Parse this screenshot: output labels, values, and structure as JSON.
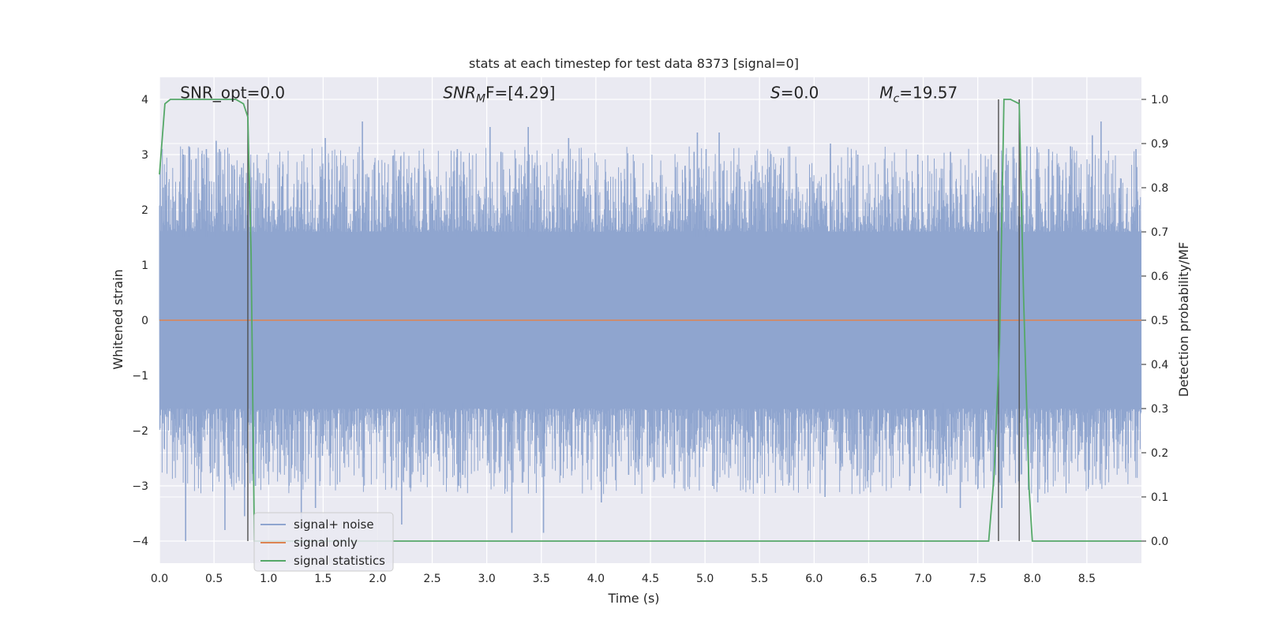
{
  "chart_data": {
    "type": "line",
    "title": "stats at each timestep for test data 8373 [signal=0]",
    "xlabel": "Time (s)",
    "ylabel": "Whitened strain",
    "y2label": "Detection probability/MF",
    "xlim": [
      0,
      9.0
    ],
    "ylim": [
      -4.4,
      4.4
    ],
    "y2lim": [
      -0.05,
      1.05
    ],
    "xticks": [
      0.0,
      0.5,
      1.0,
      1.5,
      2.0,
      2.5,
      3.0,
      3.5,
      4.0,
      4.5,
      5.0,
      5.5,
      6.0,
      6.5,
      7.0,
      7.5,
      8.0,
      8.5
    ],
    "xtick_labels": [
      "0.0",
      "0.5",
      "1.0",
      "1.5",
      "2.0",
      "2.5",
      "3.0",
      "3.5",
      "4.0",
      "4.5",
      "5.0",
      "5.5",
      "6.0",
      "6.5",
      "7.0",
      "7.5",
      "8.0",
      "8.5"
    ],
    "yticks": [
      -4,
      -3,
      -2,
      -1,
      0,
      1,
      2,
      3,
      4
    ],
    "ytick_labels": [
      "−4",
      "−3",
      "−2",
      "−1",
      "0",
      "1",
      "2",
      "3",
      "4"
    ],
    "y2ticks": [
      0.0,
      0.1,
      0.2,
      0.3,
      0.4,
      0.5,
      0.6,
      0.7,
      0.8,
      0.9,
      1.0
    ],
    "y2tick_labels": [
      "0.0",
      "0.1",
      "0.2",
      "0.3",
      "0.4",
      "0.5",
      "0.6",
      "0.7",
      "0.8",
      "0.9",
      "1.0"
    ],
    "grid": true,
    "annotations": [
      {
        "text": "SNR_opt=0.0",
        "x": 0.19,
        "y": 4.12
      },
      {
        "text": "SNR",
        "sub": "M",
        "tail": "F=[4.29]",
        "x": 2.6,
        "y": 4.12
      },
      {
        "text": "S",
        "tail": "=0.0",
        "x": 5.6,
        "y": 4.12
      },
      {
        "text": "M",
        "sub": "c",
        "tail": "=19.57",
        "x": 6.6,
        "y": 4.12
      }
    ],
    "legend": {
      "placement": "lower-left",
      "entries": [
        {
          "label": "signal+ noise",
          "color": "#8fa5cf"
        },
        {
          "label": "signal only",
          "color": "#dd8452"
        },
        {
          "label": "signal statistics",
          "color": "#55a868"
        }
      ]
    },
    "colors": {
      "background": "#eaeaf2",
      "noise": "#8fa5cf",
      "signal": "#dd8452",
      "statistics": "#55a868",
      "vline": "#505050"
    },
    "series": [
      {
        "name": "signal+ noise",
        "kind": "noise_band",
        "dense_envelope": [
          -1.6,
          1.6
        ],
        "x_range": [
          0,
          9.0
        ],
        "spikes_top": [
          [
            0.22,
            3.0
          ],
          [
            0.27,
            3.15
          ],
          [
            0.43,
            3.1
          ],
          [
            0.52,
            3.25
          ],
          [
            0.55,
            3.1
          ],
          [
            1.52,
            3.3
          ],
          [
            1.86,
            3.6
          ],
          [
            2.73,
            3.1
          ],
          [
            3.03,
            3.5
          ],
          [
            3.13,
            3.05
          ],
          [
            3.38,
            3.5
          ],
          [
            3.75,
            3.3
          ],
          [
            4.9,
            3.05
          ],
          [
            4.93,
            3.4
          ],
          [
            5.01,
            3.1
          ],
          [
            5.13,
            3.4
          ],
          [
            6.15,
            3.2
          ],
          [
            6.4,
            3.0
          ],
          [
            6.95,
            3.0
          ],
          [
            7.25,
            3.05
          ],
          [
            7.95,
            3.15
          ],
          [
            8.15,
            3.1
          ],
          [
            8.35,
            3.15
          ],
          [
            8.55,
            3.35
          ],
          [
            8.63,
            3.6
          ],
          [
            8.95,
            3.1
          ]
        ],
        "spikes_bottom": [
          [
            0.24,
            -4.0
          ],
          [
            0.6,
            -3.8
          ],
          [
            0.78,
            -3.55
          ],
          [
            0.88,
            -3.0
          ],
          [
            1.3,
            -3.6
          ],
          [
            1.43,
            -3.4
          ],
          [
            2.22,
            -3.7
          ],
          [
            2.42,
            -2.8
          ],
          [
            2.78,
            -2.8
          ],
          [
            3.23,
            -3.85
          ],
          [
            3.52,
            -3.85
          ],
          [
            4.05,
            -3.3
          ],
          [
            4.3,
            -2.8
          ],
          [
            5.07,
            -3.0
          ],
          [
            5.48,
            -2.95
          ],
          [
            6.1,
            -3.2
          ],
          [
            6.6,
            -2.75
          ],
          [
            6.88,
            -3.0
          ],
          [
            7.18,
            -3.0
          ],
          [
            7.34,
            -3.4
          ],
          [
            7.72,
            -3.4
          ],
          [
            8.05,
            -3.3
          ]
        ]
      },
      {
        "name": "signal only",
        "kind": "line",
        "x": [
          0,
          9.0
        ],
        "y": [
          0,
          0
        ]
      },
      {
        "name": "signal statistics",
        "kind": "line",
        "axis": "right",
        "x": [
          0.0,
          0.05,
          0.1,
          0.5,
          0.7,
          0.77,
          0.81,
          0.84,
          0.87,
          1.0,
          2.0,
          3.0,
          4.0,
          5.0,
          6.0,
          7.0,
          7.6,
          7.65,
          7.7,
          7.74,
          7.8,
          7.88,
          7.92,
          7.97,
          8.0,
          8.5,
          9.0
        ],
        "y": [
          0.83,
          0.99,
          1.0,
          1.0,
          1.0,
          0.99,
          0.96,
          0.65,
          0.0,
          0.0,
          0.0,
          0.0,
          0.0,
          0.0,
          0.0,
          0.0,
          0.0,
          0.15,
          0.45,
          1.0,
          1.0,
          0.99,
          0.55,
          0.12,
          0.0,
          0.0,
          0.0
        ]
      }
    ],
    "vlines": [
      0.81,
      7.69,
      7.88
    ]
  }
}
